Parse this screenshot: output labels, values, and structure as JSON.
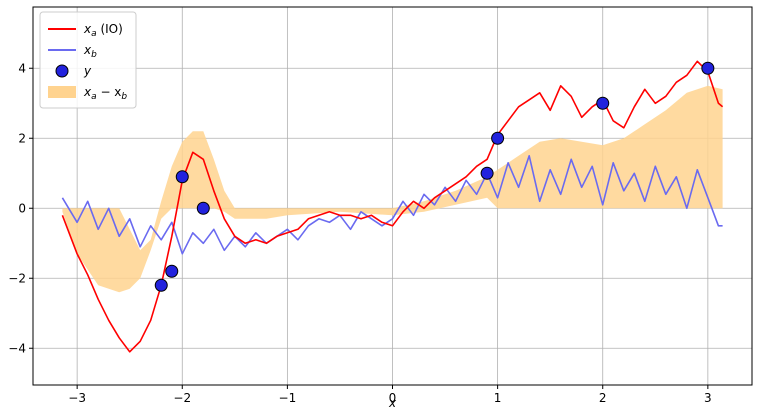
{
  "chart_data": {
    "type": "line",
    "title": "",
    "xlabel": "x",
    "ylabel": "",
    "xlim": [
      -3.42,
      3.42
    ],
    "ylim": [
      -5.05,
      5.75
    ],
    "grid": true,
    "legend_position": "top-left",
    "xticks": [
      -3,
      -2,
      -1,
      0,
      1,
      2,
      3
    ],
    "xtick_labels": [
      "−3",
      "−2",
      "−1",
      "0",
      "1",
      "2",
      "3"
    ],
    "yticks": [
      -4,
      -2,
      0,
      2,
      4
    ],
    "ytick_labels": [
      "−4",
      "−2",
      "0",
      "2",
      "4"
    ],
    "colors": {
      "xa": "#ff0000",
      "xb": "#6a6af0",
      "y_fill": "#2222dd",
      "y_edge": "#000000",
      "band": "#ffd38f"
    },
    "legend": [
      {
        "key": "xa",
        "label_main": "x",
        "label_sub": "a",
        "label_extra": " (IO)"
      },
      {
        "key": "xb",
        "label_main": "x",
        "label_sub": "b",
        "label_extra": ""
      },
      {
        "key": "y",
        "label_main": "y",
        "label_sub": "",
        "label_extra": ""
      },
      {
        "key": "band",
        "label_main": "x",
        "label_sub": "a",
        "label_extra": " − x",
        "label_sub2": "b"
      }
    ],
    "series": [
      {
        "name": "xa",
        "x": [
          -3.14,
          -3.0,
          -2.9,
          -2.8,
          -2.7,
          -2.6,
          -2.5,
          -2.4,
          -2.3,
          -2.2,
          -2.1,
          -2.0,
          -1.9,
          -1.8,
          -1.7,
          -1.6,
          -1.5,
          -1.4,
          -1.3,
          -1.2,
          -1.1,
          -1.0,
          -0.9,
          -0.8,
          -0.7,
          -0.6,
          -0.5,
          -0.4,
          -0.3,
          -0.2,
          -0.1,
          0.0,
          0.1,
          0.2,
          0.3,
          0.4,
          0.5,
          0.6,
          0.7,
          0.8,
          0.9,
          1.0,
          1.1,
          1.2,
          1.3,
          1.4,
          1.5,
          1.6,
          1.7,
          1.8,
          1.9,
          2.0,
          2.1,
          2.2,
          2.3,
          2.4,
          2.5,
          2.6,
          2.7,
          2.8,
          2.9,
          3.0,
          3.1,
          3.14
        ],
        "y": [
          -0.2,
          -1.3,
          -1.9,
          -2.6,
          -3.2,
          -3.7,
          -4.1,
          -3.8,
          -3.2,
          -2.2,
          -0.8,
          0.8,
          1.6,
          1.4,
          0.5,
          -0.3,
          -0.8,
          -1.0,
          -0.9,
          -1.0,
          -0.8,
          -0.7,
          -0.6,
          -0.3,
          -0.2,
          -0.1,
          -0.2,
          -0.2,
          -0.3,
          -0.2,
          -0.4,
          -0.5,
          -0.1,
          0.2,
          0.0,
          0.3,
          0.5,
          0.7,
          0.9,
          1.2,
          1.4,
          2.1,
          2.5,
          2.9,
          3.1,
          3.3,
          2.8,
          3.5,
          3.2,
          2.6,
          2.9,
          3.1,
          2.5,
          2.3,
          2.9,
          3.4,
          3.0,
          3.2,
          3.6,
          3.8,
          4.2,
          3.9,
          3.0,
          2.9
        ]
      },
      {
        "name": "xb",
        "x": [
          -3.14,
          -3.0,
          -2.9,
          -2.8,
          -2.7,
          -2.6,
          -2.5,
          -2.4,
          -2.3,
          -2.2,
          -2.1,
          -2.0,
          -1.9,
          -1.8,
          -1.7,
          -1.6,
          -1.5,
          -1.4,
          -1.3,
          -1.2,
          -1.1,
          -1.0,
          -0.9,
          -0.8,
          -0.7,
          -0.6,
          -0.5,
          -0.4,
          -0.3,
          -0.2,
          -0.1,
          0.0,
          0.1,
          0.2,
          0.3,
          0.4,
          0.5,
          0.6,
          0.7,
          0.8,
          0.9,
          1.0,
          1.1,
          1.2,
          1.3,
          1.4,
          1.5,
          1.6,
          1.7,
          1.8,
          1.9,
          2.0,
          2.1,
          2.2,
          2.3,
          2.4,
          2.5,
          2.6,
          2.7,
          2.8,
          2.9,
          3.0,
          3.1,
          3.14
        ],
        "y": [
          0.3,
          -0.4,
          0.2,
          -0.6,
          0.0,
          -0.8,
          -0.3,
          -1.1,
          -0.5,
          -0.9,
          -0.4,
          -1.3,
          -0.7,
          -1.0,
          -0.6,
          -1.2,
          -0.8,
          -1.1,
          -0.7,
          -1.0,
          -0.8,
          -0.6,
          -0.9,
          -0.5,
          -0.3,
          -0.4,
          -0.2,
          -0.6,
          -0.1,
          -0.3,
          -0.5,
          -0.3,
          0.2,
          -0.2,
          0.4,
          0.1,
          0.6,
          0.2,
          0.8,
          0.4,
          1.0,
          0.3,
          1.3,
          0.6,
          1.5,
          0.2,
          1.1,
          0.4,
          1.4,
          0.6,
          1.2,
          0.1,
          1.3,
          0.5,
          1.0,
          0.2,
          1.2,
          0.4,
          0.9,
          0.0,
          1.1,
          0.3,
          -0.5,
          -0.5
        ]
      },
      {
        "name": "band",
        "x": [
          -3.14,
          -3.0,
          -2.8,
          -2.6,
          -2.5,
          -2.4,
          -2.3,
          -2.2,
          -2.1,
          -2.0,
          -1.9,
          -1.8,
          -1.7,
          -1.6,
          -1.5,
          -1.2,
          -1.0,
          -0.5,
          0.0,
          0.3,
          0.6,
          0.9,
          1.0,
          1.2,
          1.4,
          1.6,
          1.8,
          2.0,
          2.2,
          2.4,
          2.6,
          2.8,
          3.0,
          3.14
        ],
        "lower": [
          -0.1,
          -1.3,
          -2.2,
          -2.4,
          -2.3,
          -2.0,
          -1.2,
          -0.3,
          0.0,
          0.0,
          0.0,
          0.0,
          0.0,
          -0.1,
          -0.3,
          -0.3,
          -0.2,
          -0.1,
          -0.2,
          -0.1,
          0.1,
          0.3,
          0.0,
          0.0,
          0.0,
          0.0,
          0.0,
          0.0,
          0.0,
          0.0,
          0.0,
          0.0,
          0.0,
          0.0
        ],
        "upper": [
          0.0,
          0.0,
          0.0,
          0.0,
          -0.6,
          -1.2,
          -0.9,
          0.2,
          1.2,
          1.9,
          2.2,
          2.2,
          1.4,
          0.5,
          0.0,
          0.0,
          0.0,
          0.0,
          0.0,
          0.2,
          0.5,
          0.9,
          1.1,
          1.5,
          1.9,
          2.0,
          1.9,
          1.8,
          2.0,
          2.4,
          2.8,
          3.3,
          3.5,
          3.4
        ]
      }
    ],
    "points": {
      "name": "y",
      "x": [
        -2.2,
        -2.1,
        -2.0,
        -1.8,
        0.9,
        1.0,
        2.0,
        3.0
      ],
      "y": [
        -2.2,
        -1.8,
        0.9,
        0.0,
        1.0,
        2.0,
        3.0,
        4.0
      ]
    }
  }
}
